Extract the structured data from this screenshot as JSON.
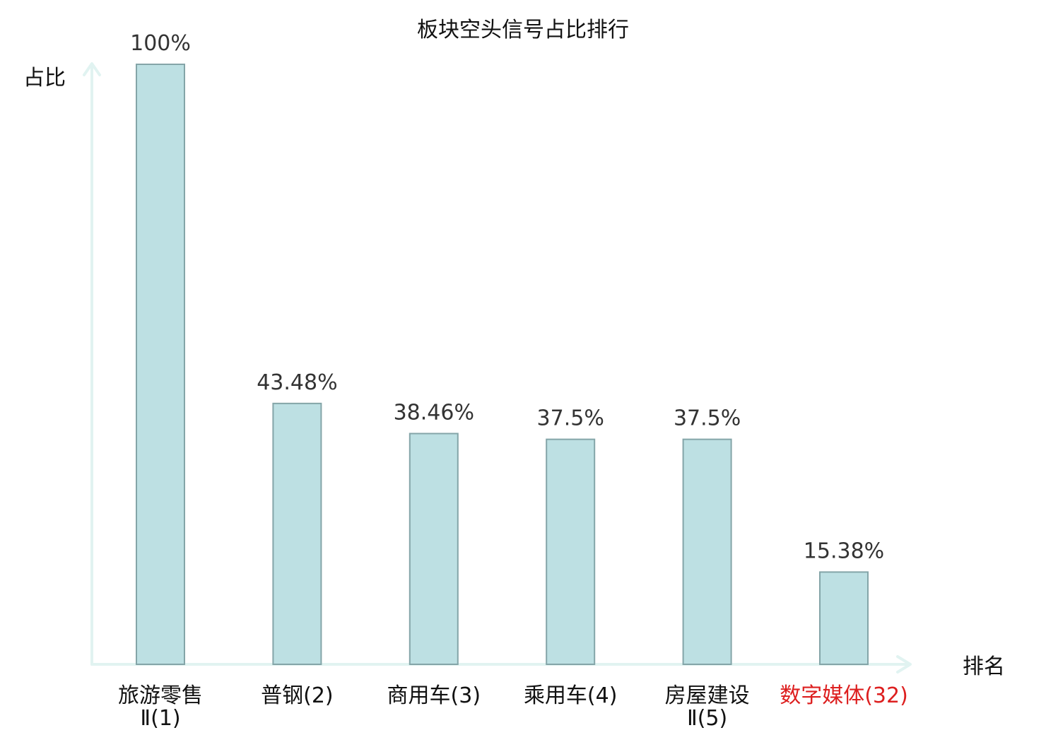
{
  "chart_data": {
    "type": "bar",
    "title": "板块空头信号占比排行",
    "ylabel": "占比",
    "xlabel": "排名",
    "ylim": [
      0,
      100
    ],
    "categories": [
      "旅游零售Ⅱ(1)",
      "普钢(2)",
      "商用车(3)",
      "乘用车(4)",
      "房屋建设Ⅱ(5)",
      "数字媒体(32)"
    ],
    "category_lines": [
      [
        "旅游零售",
        "Ⅱ(1)"
      ],
      [
        "普钢(2)"
      ],
      [
        "商用车(3)"
      ],
      [
        "乘用车(4)"
      ],
      [
        "房屋建设",
        "Ⅱ(5)"
      ],
      [
        "数字媒体(32)"
      ]
    ],
    "values": [
      100,
      43.48,
      38.46,
      37.5,
      37.5,
      15.38
    ],
    "value_labels": [
      "100%",
      "43.48%",
      "38.46%",
      "37.5%",
      "37.5%",
      "15.38%"
    ],
    "highlight_index": 5,
    "colors": {
      "bar_fill": "#bde0e3",
      "bar_stroke": "#84a5a8",
      "axis": "#e1f3f1",
      "highlight_text": "#dd1f1f",
      "text": "#111111",
      "value_text": "#333333"
    }
  }
}
